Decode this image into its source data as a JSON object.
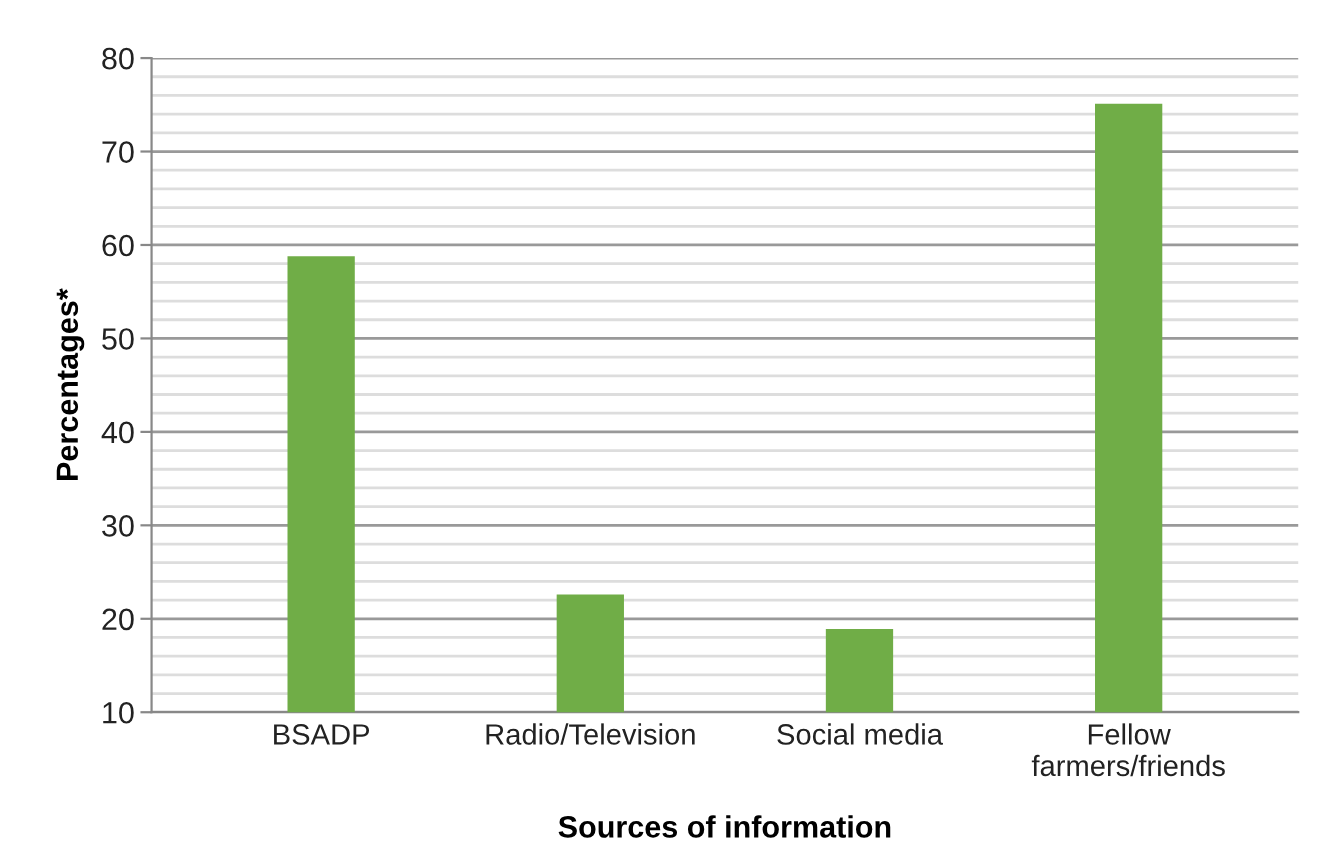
{
  "chart_data": {
    "type": "bar",
    "xlabel": "Sources of information",
    "ylabel": "Percentages*",
    "categories": [
      "BSADP",
      "Radio/Television",
      "Social media",
      "Fellow\nfarmers/friends"
    ],
    "values": [
      58.8,
      22.6,
      18.9,
      75.1
    ],
    "color": "#70ad47",
    "ylim": [
      10,
      80
    ],
    "yticks": [
      10,
      20,
      30,
      40,
      50,
      60,
      70,
      80
    ],
    "grid": "y"
  }
}
